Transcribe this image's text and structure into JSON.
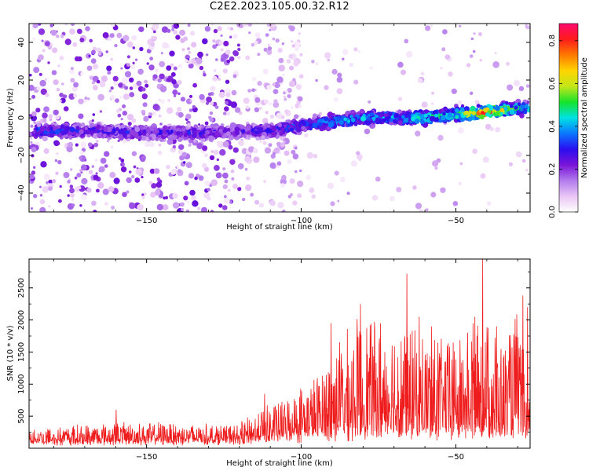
{
  "title": "C2E2.2023.105.00.32.R12",
  "colors": {
    "snr_line": "#ee1c1c",
    "colormap": [
      "#ffffff",
      "#e9c6f5",
      "#b27aed",
      "#7a14d8",
      "#2a0ef0",
      "#0a78ff",
      "#00e2e2",
      "#16e32a",
      "#c4e619",
      "#ffd400",
      "#ff7a00",
      "#ff1b1b",
      "#ff0a6e"
    ]
  },
  "chart_data": [
    {
      "type": "heatmap",
      "name": "spectrogram",
      "title": "",
      "xlabel": "Height of straight line (km)",
      "ylabel": "Frequency (Hz)",
      "xlim": [
        -188,
        -26
      ],
      "ylim": [
        -50,
        50
      ],
      "x_ticks": [
        -150,
        -100,
        -50
      ],
      "y_ticks": [
        -40,
        -20,
        0,
        20,
        40
      ],
      "colorbar": {
        "label": "Normalized spectral amplitude",
        "range": [
          0,
          0.88
        ],
        "ticks": [
          0.0,
          0.2,
          0.4,
          0.6,
          0.8
        ]
      },
      "ridge_frequency": {
        "x": [
          -185,
          -170,
          -150,
          -130,
          -120,
          -110,
          -100,
          -90,
          -80,
          -70,
          -60,
          -50,
          -40,
          -30
        ],
        "y": [
          -7,
          -7,
          -8,
          -8,
          -7,
          -7,
          -4,
          -2,
          0,
          0,
          0,
          2,
          3,
          5
        ]
      },
      "ridge_amplitude": {
        "x": [
          -185,
          -170,
          -150,
          -130,
          -120,
          -110,
          -100,
          -90,
          -80,
          -70,
          -60,
          -50,
          -40,
          -30
        ],
        "y": [
          0.35,
          0.3,
          0.3,
          0.3,
          0.25,
          0.32,
          0.35,
          0.45,
          0.45,
          0.42,
          0.5,
          0.55,
          0.8,
          0.5
        ]
      }
    },
    {
      "type": "line",
      "name": "snr",
      "title": "",
      "xlabel": "Height of straight line (km)",
      "ylabel": "SNR (10 * v/v)",
      "xlim": [
        -188,
        -26
      ],
      "ylim": [
        0,
        2950
      ],
      "x_ticks": [
        -150,
        -100,
        -50
      ],
      "y_ticks": [
        500,
        1000,
        1500,
        2000,
        2500
      ],
      "envelope": {
        "x": [
          -188,
          -170,
          -160,
          -150,
          -140,
          -130,
          -120,
          -113,
          -105,
          -100,
          -95,
          -90,
          -85,
          -80,
          -75,
          -70,
          -65,
          -60,
          -55,
          -50,
          -45,
          -40,
          -35,
          -30,
          -26
        ],
        "base": [
          100,
          100,
          100,
          110,
          110,
          110,
          120,
          140,
          180,
          200,
          220,
          250,
          250,
          300,
          300,
          300,
          300,
          300,
          280,
          300,
          300,
          300,
          300,
          300,
          250
        ],
        "peak": [
          320,
          380,
          420,
          400,
          420,
          380,
          380,
          650,
          800,
          1000,
          1150,
          1600,
          1850,
          2150,
          1950,
          2150,
          1900,
          1800,
          1850,
          1650,
          2050,
          2150,
          1650,
          2200,
          800
        ]
      },
      "spikes": [
        {
          "x": -160,
          "y": 600
        },
        {
          "x": -112,
          "y": 850
        },
        {
          "x": -90.5,
          "y": 1950
        },
        {
          "x": -81,
          "y": 2250
        },
        {
          "x": -74.5,
          "y": 1950
        },
        {
          "x": -66,
          "y": 2720
        },
        {
          "x": -62,
          "y": 2050
        },
        {
          "x": -58,
          "y": 1900
        },
        {
          "x": -51,
          "y": 1650
        },
        {
          "x": -44,
          "y": 2050
        },
        {
          "x": -41.5,
          "y": 2950
        },
        {
          "x": -37,
          "y": 1900
        },
        {
          "x": -28.5,
          "y": 2380
        },
        {
          "x": -27,
          "y": 2200
        }
      ]
    }
  ]
}
